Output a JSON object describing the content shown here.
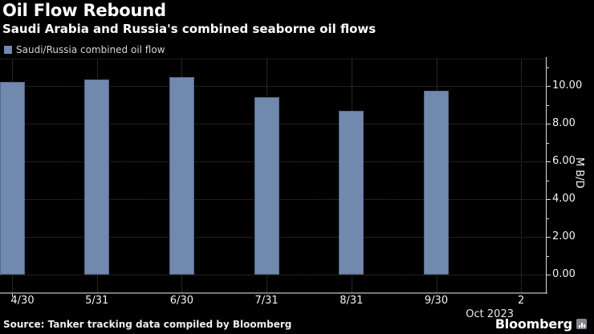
{
  "header": {
    "title": "Oil Flow Rebound",
    "subtitle": "Saudi Arabia and Russia's combined seaborne oil flows"
  },
  "legend": {
    "label": "Saudi/Russia combined oil flow"
  },
  "chart_data": {
    "type": "bar",
    "title": "Oil Flow Rebound",
    "subtitle": "Saudi Arabia and Russia's combined seaborne oil flows",
    "series_name": "Saudi/Russia combined oil flow",
    "categories": [
      "4/30",
      "5/31",
      "6/30",
      "7/31",
      "8/31",
      "9/30",
      "2"
    ],
    "values": [
      10.2,
      10.35,
      10.45,
      9.4,
      8.7,
      9.75,
      null
    ],
    "x_period_label": "Oct 2023",
    "xlabel": "",
    "ylabel": "M B/D",
    "yticks": [
      0,
      2,
      4,
      6,
      8,
      10
    ],
    "ytick_labels": [
      "0.00",
      "2.00",
      "4.00",
      "6.00",
      "8.00",
      "10.00"
    ],
    "yticks_minor": [
      1,
      3,
      5,
      7,
      9,
      11
    ],
    "ylim": [
      0,
      11.45
    ],
    "grid": true,
    "legend_position": "top-left",
    "axis_side": "right",
    "bar_color": "#7189ac",
    "background_color": "#000000",
    "text_color": "#ffffff"
  },
  "footer": {
    "source": "Source: Tanker tracking data compiled by Bloomberg",
    "logo": "Bloomberg"
  }
}
